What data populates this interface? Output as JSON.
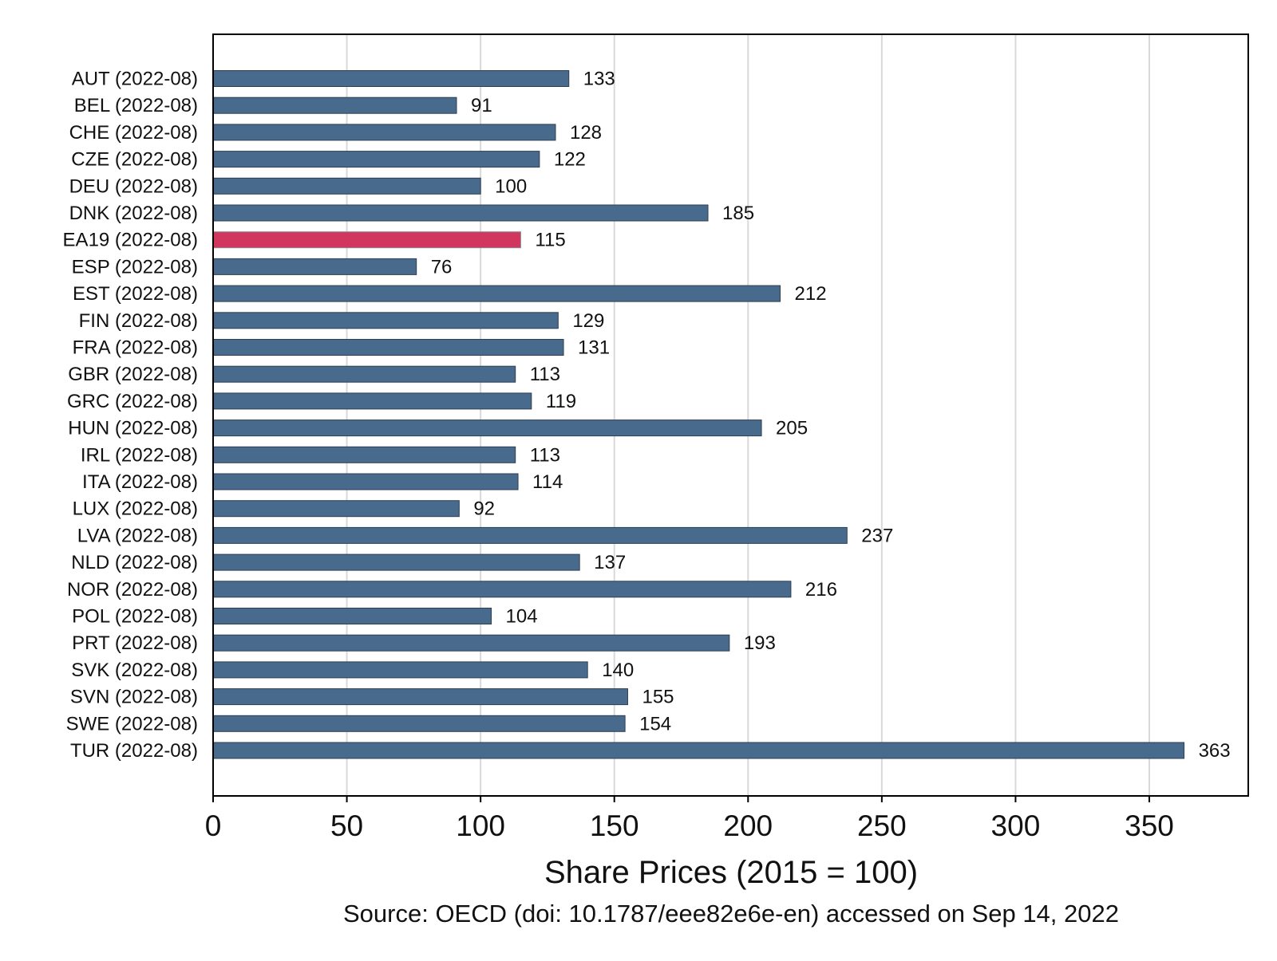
{
  "chart_data": {
    "type": "bar",
    "orientation": "horizontal",
    "categories": [
      "AUT (2022-08)",
      "BEL (2022-08)",
      "CHE (2022-08)",
      "CZE (2022-08)",
      "DEU (2022-08)",
      "DNK (2022-08)",
      "EA19 (2022-08)",
      "ESP (2022-08)",
      "EST (2022-08)",
      "FIN (2022-08)",
      "FRA (2022-08)",
      "GBR (2022-08)",
      "GRC (2022-08)",
      "HUN (2022-08)",
      "IRL (2022-08)",
      "ITA (2022-08)",
      "LUX (2022-08)",
      "LVA (2022-08)",
      "NLD (2022-08)",
      "NOR (2022-08)",
      "POL (2022-08)",
      "PRT (2022-08)",
      "SVK (2022-08)",
      "SVN (2022-08)",
      "SWE (2022-08)",
      "TUR (2022-08)"
    ],
    "values": [
      133,
      91,
      128,
      122,
      100,
      185,
      115,
      76,
      212,
      129,
      131,
      113,
      119,
      205,
      113,
      114,
      92,
      237,
      137,
      216,
      104,
      193,
      140,
      155,
      154,
      363
    ],
    "data_labels": [
      "133",
      "91",
      "128",
      "122",
      "100",
      "185",
      "115",
      "76",
      "212",
      "129",
      "131",
      "113",
      "119",
      "205",
      "113",
      "114",
      "92",
      "237",
      "137",
      "216",
      "104",
      "193",
      "140",
      "155",
      "154",
      "363"
    ],
    "highlight_category": "EA19 (2022-08)",
    "colors": {
      "bar": "#486a8c",
      "highlight": "#d1365e",
      "grid": "#d9d9d9",
      "axis": "#000000"
    },
    "xlabel": "Share Prices (2015 = 100)",
    "source": "Source: OECD (doi: 10.1787/eee82e6e-en) accessed on Sep 14, 2022",
    "xlim": [
      0,
      387
    ],
    "xticks": [
      0,
      50,
      100,
      150,
      200,
      250,
      300,
      350
    ],
    "xtick_labels": [
      "0",
      "50",
      "100",
      "150",
      "200",
      "250",
      "300",
      "350"
    ],
    "grid": "vertical",
    "legend": "none"
  }
}
